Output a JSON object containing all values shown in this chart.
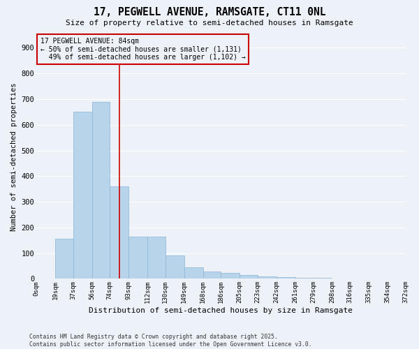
{
  "title": "17, PEGWELL AVENUE, RAMSGATE, CT11 0NL",
  "subtitle": "Size of property relative to semi-detached houses in Ramsgate",
  "xlabel": "Distribution of semi-detached houses by size in Ramsgate",
  "ylabel": "Number of semi-detached properties",
  "bar_color": "#b8d4ea",
  "bar_edge_color": "#8ab4d4",
  "bin_edges": [
    0,
    19,
    37,
    56,
    74,
    93,
    112,
    130,
    149,
    168,
    186,
    205,
    223,
    242,
    261,
    279,
    298,
    316,
    335,
    354,
    372
  ],
  "bin_labels": [
    "0sqm",
    "19sqm",
    "37sqm",
    "56sqm",
    "74sqm",
    "93sqm",
    "112sqm",
    "130sqm",
    "149sqm",
    "168sqm",
    "186sqm",
    "205sqm",
    "223sqm",
    "242sqm",
    "261sqm",
    "279sqm",
    "298sqm",
    "316sqm",
    "335sqm",
    "354sqm",
    "372sqm"
  ],
  "bar_heights": [
    2,
    155,
    650,
    690,
    360,
    165,
    165,
    90,
    45,
    28,
    22,
    15,
    8,
    7,
    5,
    3,
    2,
    1,
    0,
    0
  ],
  "property_size": 84,
  "property_label": "17 PEGWELL AVENUE: 84sqm",
  "pct_smaller": 50,
  "n_smaller": 1131,
  "pct_larger": 49,
  "n_larger": 1102,
  "vline_color": "#cc0000",
  "annotation_box_color": "#cc0000",
  "ylim": [
    0,
    950
  ],
  "yticks": [
    0,
    100,
    200,
    300,
    400,
    500,
    600,
    700,
    800,
    900
  ],
  "background_color": "#edf2f9",
  "grid_color": "#ffffff",
  "footnote": "Contains HM Land Registry data © Crown copyright and database right 2025.\nContains public sector information licensed under the Open Government Licence v3.0."
}
